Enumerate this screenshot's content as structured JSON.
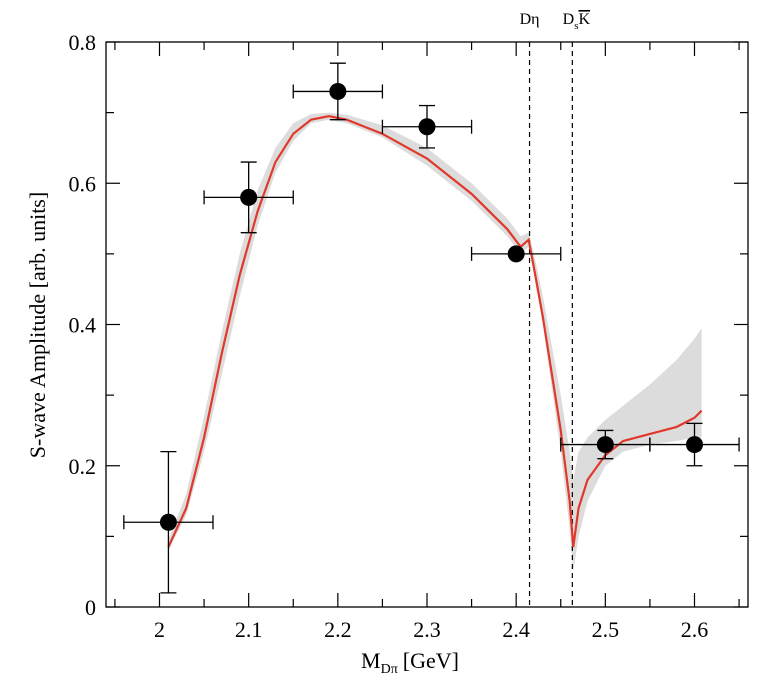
{
  "chart_data": {
    "type": "scatter",
    "title": "",
    "xlabel": "M",
    "xlabel_sub": "Dπ",
    "xlabel_unit": "[GeV]",
    "ylabel": "S-wave Amplitude [arb. units]",
    "xlim": [
      1.94,
      2.66
    ],
    "ylim": [
      0,
      0.8
    ],
    "xticks": [
      2,
      2.1,
      2.2,
      2.3,
      2.4,
      2.5,
      2.6
    ],
    "xtick_labels": [
      "2",
      "2.1",
      "2.2",
      "2.3",
      "2.4",
      "2.5",
      "2.6"
    ],
    "yticks": [
      0,
      0.2,
      0.4,
      0.6,
      0.8
    ],
    "ytick_labels": [
      "0",
      "0.2",
      "0.4",
      "0.6",
      "0.8"
    ],
    "grid": false,
    "data_points": [
      {
        "x": 2.01,
        "y": 0.12,
        "xerr": 0.05,
        "yerr": 0.1
      },
      {
        "x": 2.1,
        "y": 0.58,
        "xerr": 0.05,
        "yerr": 0.05
      },
      {
        "x": 2.2,
        "y": 0.73,
        "xerr": 0.05,
        "yerr": 0.04
      },
      {
        "x": 2.3,
        "y": 0.68,
        "xerr": 0.05,
        "yerr": 0.03
      },
      {
        "x": 2.4,
        "y": 0.5,
        "xerr": 0.05,
        "yerr": 0
      },
      {
        "x": 2.5,
        "y": 0.23,
        "xerr": 0.05,
        "yerr": 0.02
      },
      {
        "x": 2.6,
        "y": 0.23,
        "xerr": 0.05,
        "yerr": 0.03
      }
    ],
    "fit_curve": {
      "color": "#e0392b",
      "x": [
        2.01,
        2.03,
        2.05,
        2.07,
        2.09,
        2.11,
        2.13,
        2.15,
        2.17,
        2.19,
        2.21,
        2.25,
        2.3,
        2.35,
        2.39,
        2.405,
        2.414,
        2.42,
        2.43,
        2.44,
        2.45,
        2.46,
        2.464,
        2.47,
        2.48,
        2.5,
        2.52,
        2.55,
        2.58,
        2.6,
        2.608
      ],
      "y": [
        0.085,
        0.14,
        0.24,
        0.36,
        0.47,
        0.56,
        0.63,
        0.67,
        0.69,
        0.695,
        0.69,
        0.67,
        0.635,
        0.585,
        0.535,
        0.51,
        0.52,
        0.48,
        0.41,
        0.33,
        0.25,
        0.15,
        0.085,
        0.14,
        0.18,
        0.215,
        0.235,
        0.245,
        0.255,
        0.268,
        0.278
      ]
    },
    "error_band": {
      "color": "#dcdcdc",
      "x": [
        2.01,
        2.03,
        2.05,
        2.07,
        2.09,
        2.11,
        2.13,
        2.15,
        2.17,
        2.19,
        2.21,
        2.25,
        2.3,
        2.35,
        2.39,
        2.405,
        2.414,
        2.42,
        2.43,
        2.44,
        2.45,
        2.46,
        2.464,
        2.47,
        2.48,
        2.5,
        2.52,
        2.55,
        2.58,
        2.6,
        2.608
      ],
      "lower": [
        0.08,
        0.13,
        0.22,
        0.33,
        0.44,
        0.54,
        0.615,
        0.66,
        0.685,
        0.69,
        0.685,
        0.665,
        0.625,
        0.575,
        0.525,
        0.5,
        0.51,
        0.47,
        0.4,
        0.31,
        0.22,
        0.11,
        0.05,
        0.1,
        0.15,
        0.2,
        0.22,
        0.23,
        0.235,
        0.24,
        0.24
      ],
      "upper": [
        0.095,
        0.16,
        0.27,
        0.39,
        0.5,
        0.59,
        0.65,
        0.685,
        0.698,
        0.7,
        0.697,
        0.682,
        0.65,
        0.6,
        0.55,
        0.525,
        0.53,
        0.5,
        0.44,
        0.37,
        0.3,
        0.22,
        0.18,
        0.22,
        0.24,
        0.265,
        0.285,
        0.315,
        0.35,
        0.38,
        0.395
      ]
    },
    "thresholds": [
      {
        "x": 2.415,
        "label": "Dη"
      },
      {
        "x": 2.463,
        "label": "D",
        "label_sub": "s",
        "label_bar": "K"
      }
    ]
  }
}
